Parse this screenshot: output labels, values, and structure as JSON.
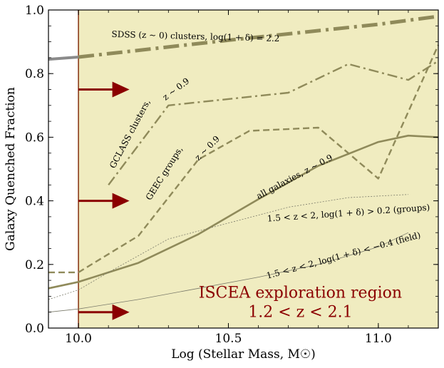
{
  "chart_data": {
    "type": "line",
    "xlabel": "Log (Stellar Mass, M☉)",
    "ylabel": "Galaxy Quenched Fraction",
    "xlim": [
      9.9,
      11.2
    ],
    "ylim": [
      0.0,
      1.0
    ],
    "x_ticks": [
      10.0,
      10.5,
      11.0
    ],
    "x_tick_labels": [
      "10.0",
      "10.5",
      "11.0"
    ],
    "y_ticks": [
      0.0,
      0.2,
      0.4,
      0.6,
      0.8,
      1.0
    ],
    "y_tick_labels": [
      "0.0",
      "0.2",
      "0.4",
      "0.6",
      "0.8",
      "1.0"
    ],
    "shaded_region": {
      "x_start": 10.0,
      "x_end": 11.2,
      "color": "#f0ecc0"
    },
    "vertical_line": {
      "x": 10.0,
      "color": "#8b3a1a"
    },
    "series": [
      {
        "name": "SDSS (z~0) clusters",
        "style": "dashdot-thick",
        "segments": [
          {
            "style": "solid-gray",
            "points": [
              [
                9.9,
                0.845
              ],
              [
                10.0,
                0.852
              ]
            ]
          },
          {
            "style": "dashdot-thick",
            "points": [
              [
                10.0,
                0.852
              ],
              [
                10.5,
                0.905
              ],
              [
                11.0,
                0.955
              ],
              [
                11.2,
                0.98
              ]
            ]
          }
        ]
      },
      {
        "name": "GCLASS clusters z~0.9",
        "style": "dashdot",
        "points": [
          [
            10.1,
            0.45
          ],
          [
            10.3,
            0.7
          ],
          [
            10.7,
            0.74
          ],
          [
            10.9,
            0.83
          ],
          [
            11.1,
            0.78
          ],
          [
            11.2,
            0.84
          ]
        ]
      },
      {
        "name": "GEEC groups z~0.9",
        "style": "dashed",
        "points": [
          [
            9.9,
            0.175
          ],
          [
            10.0,
            0.175
          ],
          [
            10.2,
            0.29
          ],
          [
            10.4,
            0.53
          ],
          [
            10.57,
            0.62
          ],
          [
            10.8,
            0.63
          ],
          [
            11.0,
            0.47
          ],
          [
            11.2,
            0.89
          ]
        ]
      },
      {
        "name": "all galaxies z~0.9",
        "style": "solid-thick",
        "points": [
          [
            9.9,
            0.125
          ],
          [
            10.0,
            0.145
          ],
          [
            10.2,
            0.205
          ],
          [
            10.4,
            0.295
          ],
          [
            10.6,
            0.405
          ],
          [
            10.8,
            0.51
          ],
          [
            11.0,
            0.585
          ],
          [
            11.1,
            0.605
          ],
          [
            11.2,
            0.6
          ]
        ]
      },
      {
        "name": "1.5<z<2 groups",
        "style": "dotted-thin",
        "points": [
          [
            9.9,
            0.09
          ],
          [
            10.0,
            0.12
          ],
          [
            10.1,
            0.175
          ],
          [
            10.3,
            0.28
          ],
          [
            10.5,
            0.33
          ],
          [
            10.7,
            0.38
          ],
          [
            10.9,
            0.41
          ],
          [
            11.1,
            0.42
          ]
        ]
      },
      {
        "name": "1.5<z<2 field",
        "style": "solid-thin",
        "points": [
          [
            9.9,
            0.05
          ],
          [
            10.0,
            0.06
          ],
          [
            10.2,
            0.09
          ],
          [
            10.4,
            0.125
          ],
          [
            10.6,
            0.16
          ],
          [
            10.8,
            0.2
          ],
          [
            11.0,
            0.255
          ],
          [
            11.1,
            0.3
          ]
        ]
      }
    ],
    "arrows": [
      {
        "y": 0.75,
        "x_start": 10.0,
        "x_end": 10.17,
        "color": "#8b0000"
      },
      {
        "y": 0.4,
        "x_start": 10.0,
        "x_end": 10.17,
        "color": "#8b0000"
      },
      {
        "y": 0.05,
        "x_start": 10.0,
        "x_end": 10.17,
        "color": "#8b0000"
      }
    ],
    "annotations": [
      {
        "text": "SDSS (z ~ 0) clusters, log(1 + δ) = 2.2",
        "x": 10.11,
        "y": 0.915,
        "rotation": 1.5,
        "kind": "annot"
      },
      {
        "text": "GCLASS clusters,",
        "x": 10.12,
        "y": 0.5,
        "rotation": -62,
        "kind": "annot"
      },
      {
        "text": "z ~ 0.9",
        "x": 10.29,
        "y": 0.715,
        "rotation": -37,
        "kind": "annot"
      },
      {
        "text": "GEEC groups,",
        "x": 10.24,
        "y": 0.4,
        "rotation": -58,
        "kind": "annot"
      },
      {
        "text": "z ~ 0.9",
        "x": 10.4,
        "y": 0.525,
        "rotation": -45,
        "kind": "annot"
      },
      {
        "text": "all galaxies, z ~ 0.9",
        "x": 10.6,
        "y": 0.405,
        "rotation": -28,
        "kind": "annot"
      },
      {
        "text": "1.5 < z < 2, log(1 + δ) > 0.2 (groups)",
        "x": 10.63,
        "y": 0.335,
        "rotation": -4,
        "kind": "annot"
      },
      {
        "text": "1.5 < z < 2, log(1 + δ) < −0.4 (field)",
        "x": 10.63,
        "y": 0.155,
        "rotation": -15,
        "kind": "annot"
      },
      {
        "text": "ISCEA exploration region",
        "x": 10.74,
        "y": 0.095,
        "rotation": 0,
        "kind": "region"
      },
      {
        "text": "1.2 < z < 2.1",
        "x": 10.74,
        "y": 0.035,
        "rotation": 0,
        "kind": "region"
      }
    ]
  }
}
